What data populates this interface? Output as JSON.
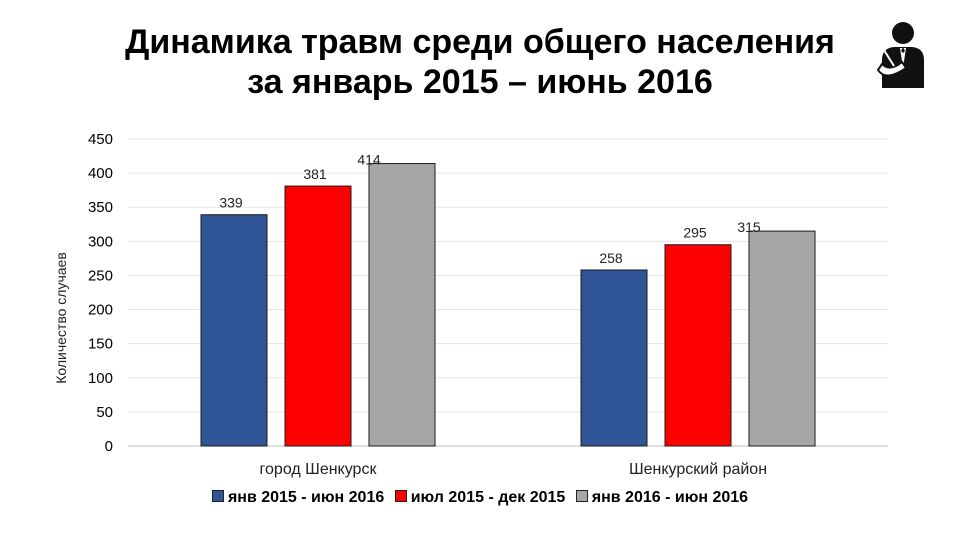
{
  "header": {
    "title_line1": "Динамика травм среди общего населения",
    "title_line2": "за январь 2015 – июнь 2016",
    "icon": "injured-person-icon"
  },
  "chart_data": {
    "type": "bar",
    "title": "Динамика травм среди общего населения за январь 2015 – июнь 2016",
    "ylabel": "Количество случаев",
    "xlabel": "",
    "ylim": [
      0,
      450
    ],
    "yticks": [
      0,
      50,
      100,
      150,
      200,
      250,
      300,
      350,
      400,
      450
    ],
    "grid": true,
    "legend_position": "bottom",
    "categories": [
      "город Шенкурск",
      "Шенкурский район"
    ],
    "series": [
      {
        "name": "янв 2015 - июн 2016",
        "color": "#2F5597",
        "values": [
          339,
          258
        ]
      },
      {
        "name": "июл 2015 - дек 2015",
        "color": "#FF0000",
        "values": [
          381,
          295
        ]
      },
      {
        "name": "янв 2016 - июн 2016",
        "color": "#A6A6A6",
        "values": [
          414,
          315
        ]
      }
    ]
  }
}
